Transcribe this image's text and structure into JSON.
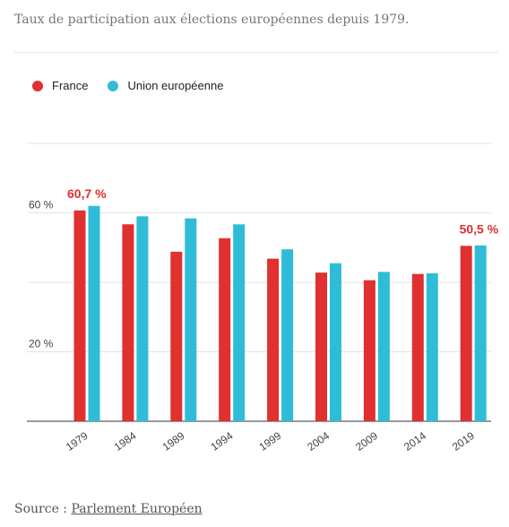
{
  "subtitle": "Taux de participation aux élections européennes depuis 1979.",
  "legend": [
    {
      "label": "France",
      "color": "#e03030"
    },
    {
      "label": "Union européenne",
      "color": "#2fbcd6"
    }
  ],
  "source": {
    "prefix": "Source : ",
    "link": "Parlement Européen"
  },
  "chart_data": {
    "type": "bar",
    "categories": [
      "1979",
      "1984",
      "1989",
      "1994",
      "1999",
      "2004",
      "2009",
      "2014",
      "2019"
    ],
    "series": [
      {
        "name": "France",
        "color": "#e03030",
        "values": [
          60.7,
          56.7,
          48.8,
          52.7,
          46.8,
          42.8,
          40.6,
          42.4,
          50.5
        ]
      },
      {
        "name": "Union européenne",
        "color": "#2fbcd6",
        "values": [
          62.0,
          59.0,
          58.4,
          56.7,
          49.5,
          45.5,
          43.0,
          42.6,
          50.6
        ]
      }
    ],
    "ylim": [
      0,
      80
    ],
    "yticks": [
      {
        "value": 20,
        "label": "20  %"
      },
      {
        "value": 60,
        "label": "60  %"
      }
    ],
    "gridlines": [
      20,
      40,
      60,
      80
    ],
    "annotations": [
      {
        "category": "1979",
        "series": "France",
        "text": "60,7 %"
      },
      {
        "category": "2019",
        "series": "France",
        "text": "50,5 %"
      }
    ]
  }
}
